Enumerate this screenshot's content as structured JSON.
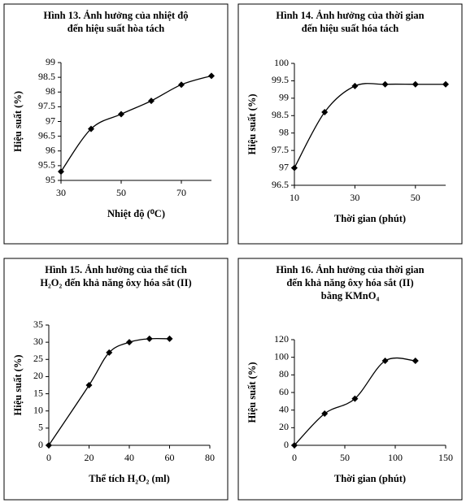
{
  "chart_data": [
    {
      "type": "line",
      "title": [
        "Hình 13. Ảnh hưởng của nhiệt độ",
        "đến hiệu suất hòa tách"
      ],
      "x_label": "Nhiệt độ (⁰C)",
      "y_label": "Hiệu suất (%)",
      "x": [
        30,
        40,
        50,
        60,
        70,
        80
      ],
      "series": [
        {
          "color": "#000000",
          "values": [
            95.3,
            96.75,
            97.25,
            97.7,
            98.25,
            98.55
          ]
        }
      ],
      "xlim": [
        30,
        80
      ],
      "xticks": [
        30,
        50,
        70
      ],
      "ylim": [
        95,
        99
      ],
      "yticks": [
        95,
        95.5,
        96,
        96.5,
        97,
        97.5,
        98,
        98.5,
        99
      ]
    },
    {
      "type": "line",
      "title": [
        "Hình 14. Ảnh hưởng của thời gian",
        "đến hiệu suất hóa tách"
      ],
      "x_label": "Thời gian (phút)",
      "y_label": "Hiệu suất (%)",
      "x": [
        10,
        20,
        30,
        40,
        50,
        60
      ],
      "series": [
        {
          "color": "#000000",
          "values": [
            97.0,
            98.6,
            99.35,
            99.4,
            99.4,
            99.4
          ]
        }
      ],
      "xlim": [
        10,
        60
      ],
      "xticks": [
        10,
        30,
        50
      ],
      "ylim": [
        96.5,
        100
      ],
      "yticks": [
        96.5,
        97,
        97.5,
        98,
        98.5,
        99,
        99.5,
        100
      ]
    },
    {
      "type": "line",
      "title": [
        "Hình 15. Ảnh hưởng của thể tích",
        "H₂O₂ đến khả năng ôxy hóa sắt (II)"
      ],
      "x_label": "Thể tích H₂O₂ (ml)",
      "y_label": "Hiệu suất (%)",
      "x": [
        0,
        20,
        30,
        40,
        50,
        60
      ],
      "series": [
        {
          "color": "#000000",
          "values": [
            0,
            17.5,
            27,
            30,
            31,
            31
          ]
        }
      ],
      "xlim": [
        0,
        80
      ],
      "xticks": [
        0,
        20,
        40,
        60,
        80
      ],
      "ylim": [
        0,
        35
      ],
      "yticks": [
        0,
        5,
        10,
        15,
        20,
        25,
        30,
        35
      ]
    },
    {
      "type": "line",
      "title": [
        "Hình 16. Ảnh hưởng của thời gian",
        "đến khả năng ôxy hóa sắt (II)",
        "bằng KMnO₄"
      ],
      "x_label": "Thời gian (phút)",
      "y_label": "Hiệu suất (%)",
      "x": [
        0,
        30,
        60,
        90,
        120
      ],
      "series": [
        {
          "color": "#000000",
          "values": [
            0,
            36,
            53,
            96,
            96
          ]
        }
      ],
      "xlim": [
        0,
        150
      ],
      "xticks": [
        0,
        50,
        100,
        150
      ],
      "ylim": [
        0,
        120
      ],
      "yticks": [
        0,
        20,
        40,
        60,
        80,
        100,
        120
      ]
    }
  ]
}
